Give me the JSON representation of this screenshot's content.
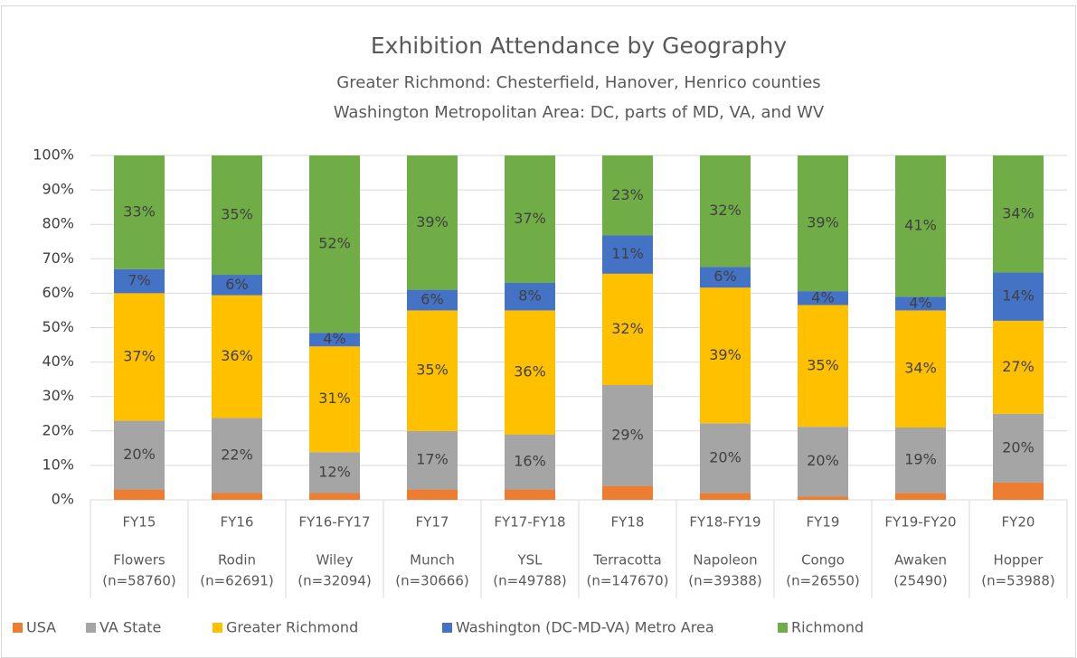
{
  "chart_data": {
    "type": "bar",
    "stacked": "percent",
    "title": "Exhibition Attendance by Geography",
    "subtitles": [
      "Greater Richmond: Chesterfield, Hanover, Henrico counties",
      "Washington Metropolitan Area: DC, parts of MD, VA, and WV"
    ],
    "categories": [
      [
        "FY15",
        "Flowers",
        "(n=58760)"
      ],
      [
        "FY16",
        "Rodin",
        "(n=62691)"
      ],
      [
        "FY16-FY17",
        "Wiley",
        "(n=32094)"
      ],
      [
        "FY17",
        "Munch",
        "(n=30666)"
      ],
      [
        "FY17-FY18",
        "YSL",
        "(n=49788)"
      ],
      [
        "FY18",
        "Terracotta",
        "(n=147670)"
      ],
      [
        "FY18-FY19",
        "Napoleon",
        "(n=39388)"
      ],
      [
        "FY19",
        "Congo",
        "(n=26550)"
      ],
      [
        "FY19-FY20",
        "Awaken",
        "(25490)"
      ],
      [
        "FY20",
        "Hopper",
        "(n=53988)"
      ]
    ],
    "series": [
      {
        "name": "USA",
        "color": "#ed7d31",
        "values": [
          3,
          2,
          2,
          3,
          3,
          4,
          2,
          1,
          2,
          5
        ]
      },
      {
        "name": "VA State",
        "color": "#a5a5a5",
        "values": [
          20,
          22,
          12,
          17,
          16,
          29,
          20,
          20,
          19,
          20
        ],
        "value_labels": [
          "20%",
          "22%",
          "12%",
          "17%",
          "16%",
          "29%",
          "20%",
          "20%",
          "19%",
          "20%"
        ]
      },
      {
        "name": "Greater Richmond",
        "color": "#ffc000",
        "values": [
          37,
          36,
          31,
          35,
          36,
          32,
          39,
          35,
          34,
          27
        ],
        "value_labels": [
          "37%",
          "36%",
          "31%",
          "35%",
          "36%",
          "32%",
          "39%",
          "35%",
          "34%",
          "27%"
        ]
      },
      {
        "name": "Washington (DC-MD-VA) Metro Area",
        "color": "#4472c4",
        "values": [
          7,
          6,
          4,
          6,
          8,
          11,
          6,
          4,
          4,
          14
        ],
        "value_labels": [
          "7%",
          "6%",
          "4%",
          "6%",
          "8%",
          "11%",
          "6%",
          "4%",
          "4%",
          "14%"
        ]
      },
      {
        "name": "Richmond",
        "color": "#70ad47",
        "values": [
          33,
          35,
          52,
          39,
          37,
          23,
          32,
          39,
          41,
          34
        ],
        "value_labels": [
          "33%",
          "35%",
          "52%",
          "39%",
          "37%",
          "23%",
          "32%",
          "39%",
          "41%",
          "34%"
        ]
      }
    ],
    "ylim": [
      0,
      100
    ],
    "yticks": [
      {
        "value": 0,
        "label": "0%"
      },
      {
        "value": 10,
        "label": "10%"
      },
      {
        "value": 20,
        "label": "20%"
      },
      {
        "value": 30,
        "label": "30%"
      },
      {
        "value": 40,
        "label": "40%"
      },
      {
        "value": 50,
        "label": "50%"
      },
      {
        "value": 60,
        "label": "60%"
      },
      {
        "value": 70,
        "label": "70%"
      },
      {
        "value": 80,
        "label": "80%"
      },
      {
        "value": 90,
        "label": "90%"
      },
      {
        "value": 100,
        "label": "100%"
      }
    ],
    "grid": true,
    "legend": "bottom"
  }
}
